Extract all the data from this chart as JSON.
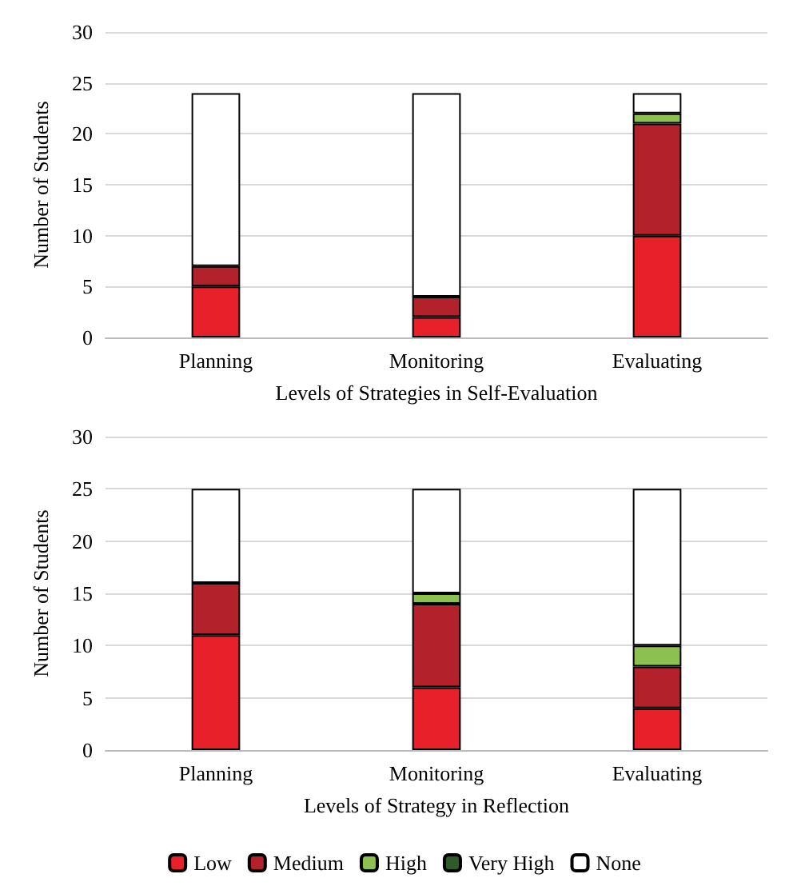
{
  "chart_data": [
    {
      "type": "bar",
      "stacked": true,
      "xlabel": "Levels of Strategies in Self-Evaluation",
      "ylabel": "Number of Students",
      "categories": [
        "Planning",
        "Monitoring",
        "Evaluating"
      ],
      "ylim": [
        0,
        30
      ],
      "yticks": [
        0,
        5,
        10,
        15,
        20,
        25,
        30
      ],
      "grid": "y",
      "legend": false,
      "series": [
        {
          "color": "#e8202a",
          "values": [
            5,
            2,
            10
          ]
        },
        {
          "color": "#b3212a",
          "values": [
            2,
            2,
            11
          ]
        },
        {
          "color": "#8cc152",
          "values": [
            0,
            0,
            1
          ]
        },
        {
          "color": "#2f5a2a",
          "values": [
            0,
            0,
            0
          ]
        },
        {
          "color": "#ffffff",
          "values": [
            17,
            20,
            2
          ]
        }
      ]
    },
    {
      "type": "bar",
      "stacked": true,
      "xlabel": "Levels of Strategy in Reflection",
      "ylabel": "Number of Students",
      "categories": [
        "Planning",
        "Monitoring",
        "Evaluating"
      ],
      "ylim": [
        0,
        30
      ],
      "yticks": [
        0,
        5,
        10,
        15,
        20,
        25,
        30
      ],
      "grid": "y",
      "legend": "bottom",
      "series": [
        {
          "name": "Low",
          "color": "#e8202a",
          "values": [
            11,
            6,
            4
          ]
        },
        {
          "name": "Medium",
          "color": "#b3212a",
          "values": [
            5,
            8,
            4
          ]
        },
        {
          "name": "High",
          "color": "#8cc152",
          "values": [
            0,
            1,
            2
          ]
        },
        {
          "name": "Very High",
          "color": "#2f5a2a",
          "values": [
            0,
            0,
            0
          ]
        },
        {
          "name": "None",
          "color": "#ffffff",
          "values": [
            9,
            10,
            15
          ]
        }
      ]
    }
  ]
}
